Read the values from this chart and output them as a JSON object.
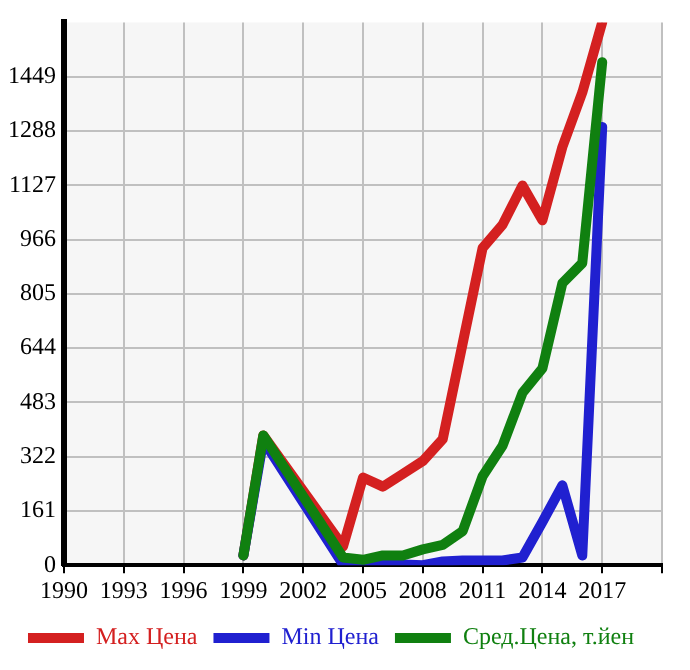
{
  "chart_data": {
    "type": "line",
    "series": [
      {
        "name": "Max Цена",
        "color": "#d42020",
        "x": [
          1999,
          2000,
          2004,
          2005,
          2006,
          2007,
          2008,
          2009,
          2010,
          2011,
          2012,
          2013,
          2014,
          2015,
          2016,
          2017
        ],
        "values": [
          29,
          385,
          56,
          260,
          233,
          271,
          309,
          374,
          658,
          941,
          1010,
          1126,
          1023,
          1240,
          1402,
          1610
        ]
      },
      {
        "name": "Min Цена",
        "color": "#2020d0",
        "x": [
          1999,
          2000,
          2004,
          2005,
          2006,
          2007,
          2008,
          2009,
          2010,
          2011,
          2012,
          2013,
          2014,
          2015,
          2016,
          2017
        ],
        "values": [
          29,
          370,
          2,
          0,
          2,
          2,
          0,
          11,
          14,
          14,
          14,
          23,
          128,
          237,
          29,
          1300
        ]
      },
      {
        "name": "Сред.Цена, т.йен",
        "color": "#108010",
        "x": [
          1999,
          2000,
          2004,
          2005,
          2006,
          2007,
          2008,
          2009,
          2010,
          2011,
          2012,
          2013,
          2014,
          2015,
          2016,
          2017
        ],
        "values": [
          29,
          385,
          23,
          16,
          29,
          29,
          47,
          60,
          101,
          264,
          354,
          511,
          584,
          836,
          896,
          1492
        ]
      }
    ],
    "xlim": [
      1990,
      2020
    ],
    "xticks": [
      1990,
      1993,
      1996,
      1999,
      2002,
      2005,
      2008,
      2011,
      2014,
      2017,
      {
        "value": 2020,
        "label": null
      }
    ],
    "ylim": [
      0,
      1610
    ],
    "yticks": [
      0,
      161,
      322,
      483,
      644,
      805,
      966,
      1127,
      1288,
      1449
    ],
    "grid": true,
    "legend": "bottom",
    "marker": "none",
    "line_style": "solid"
  }
}
